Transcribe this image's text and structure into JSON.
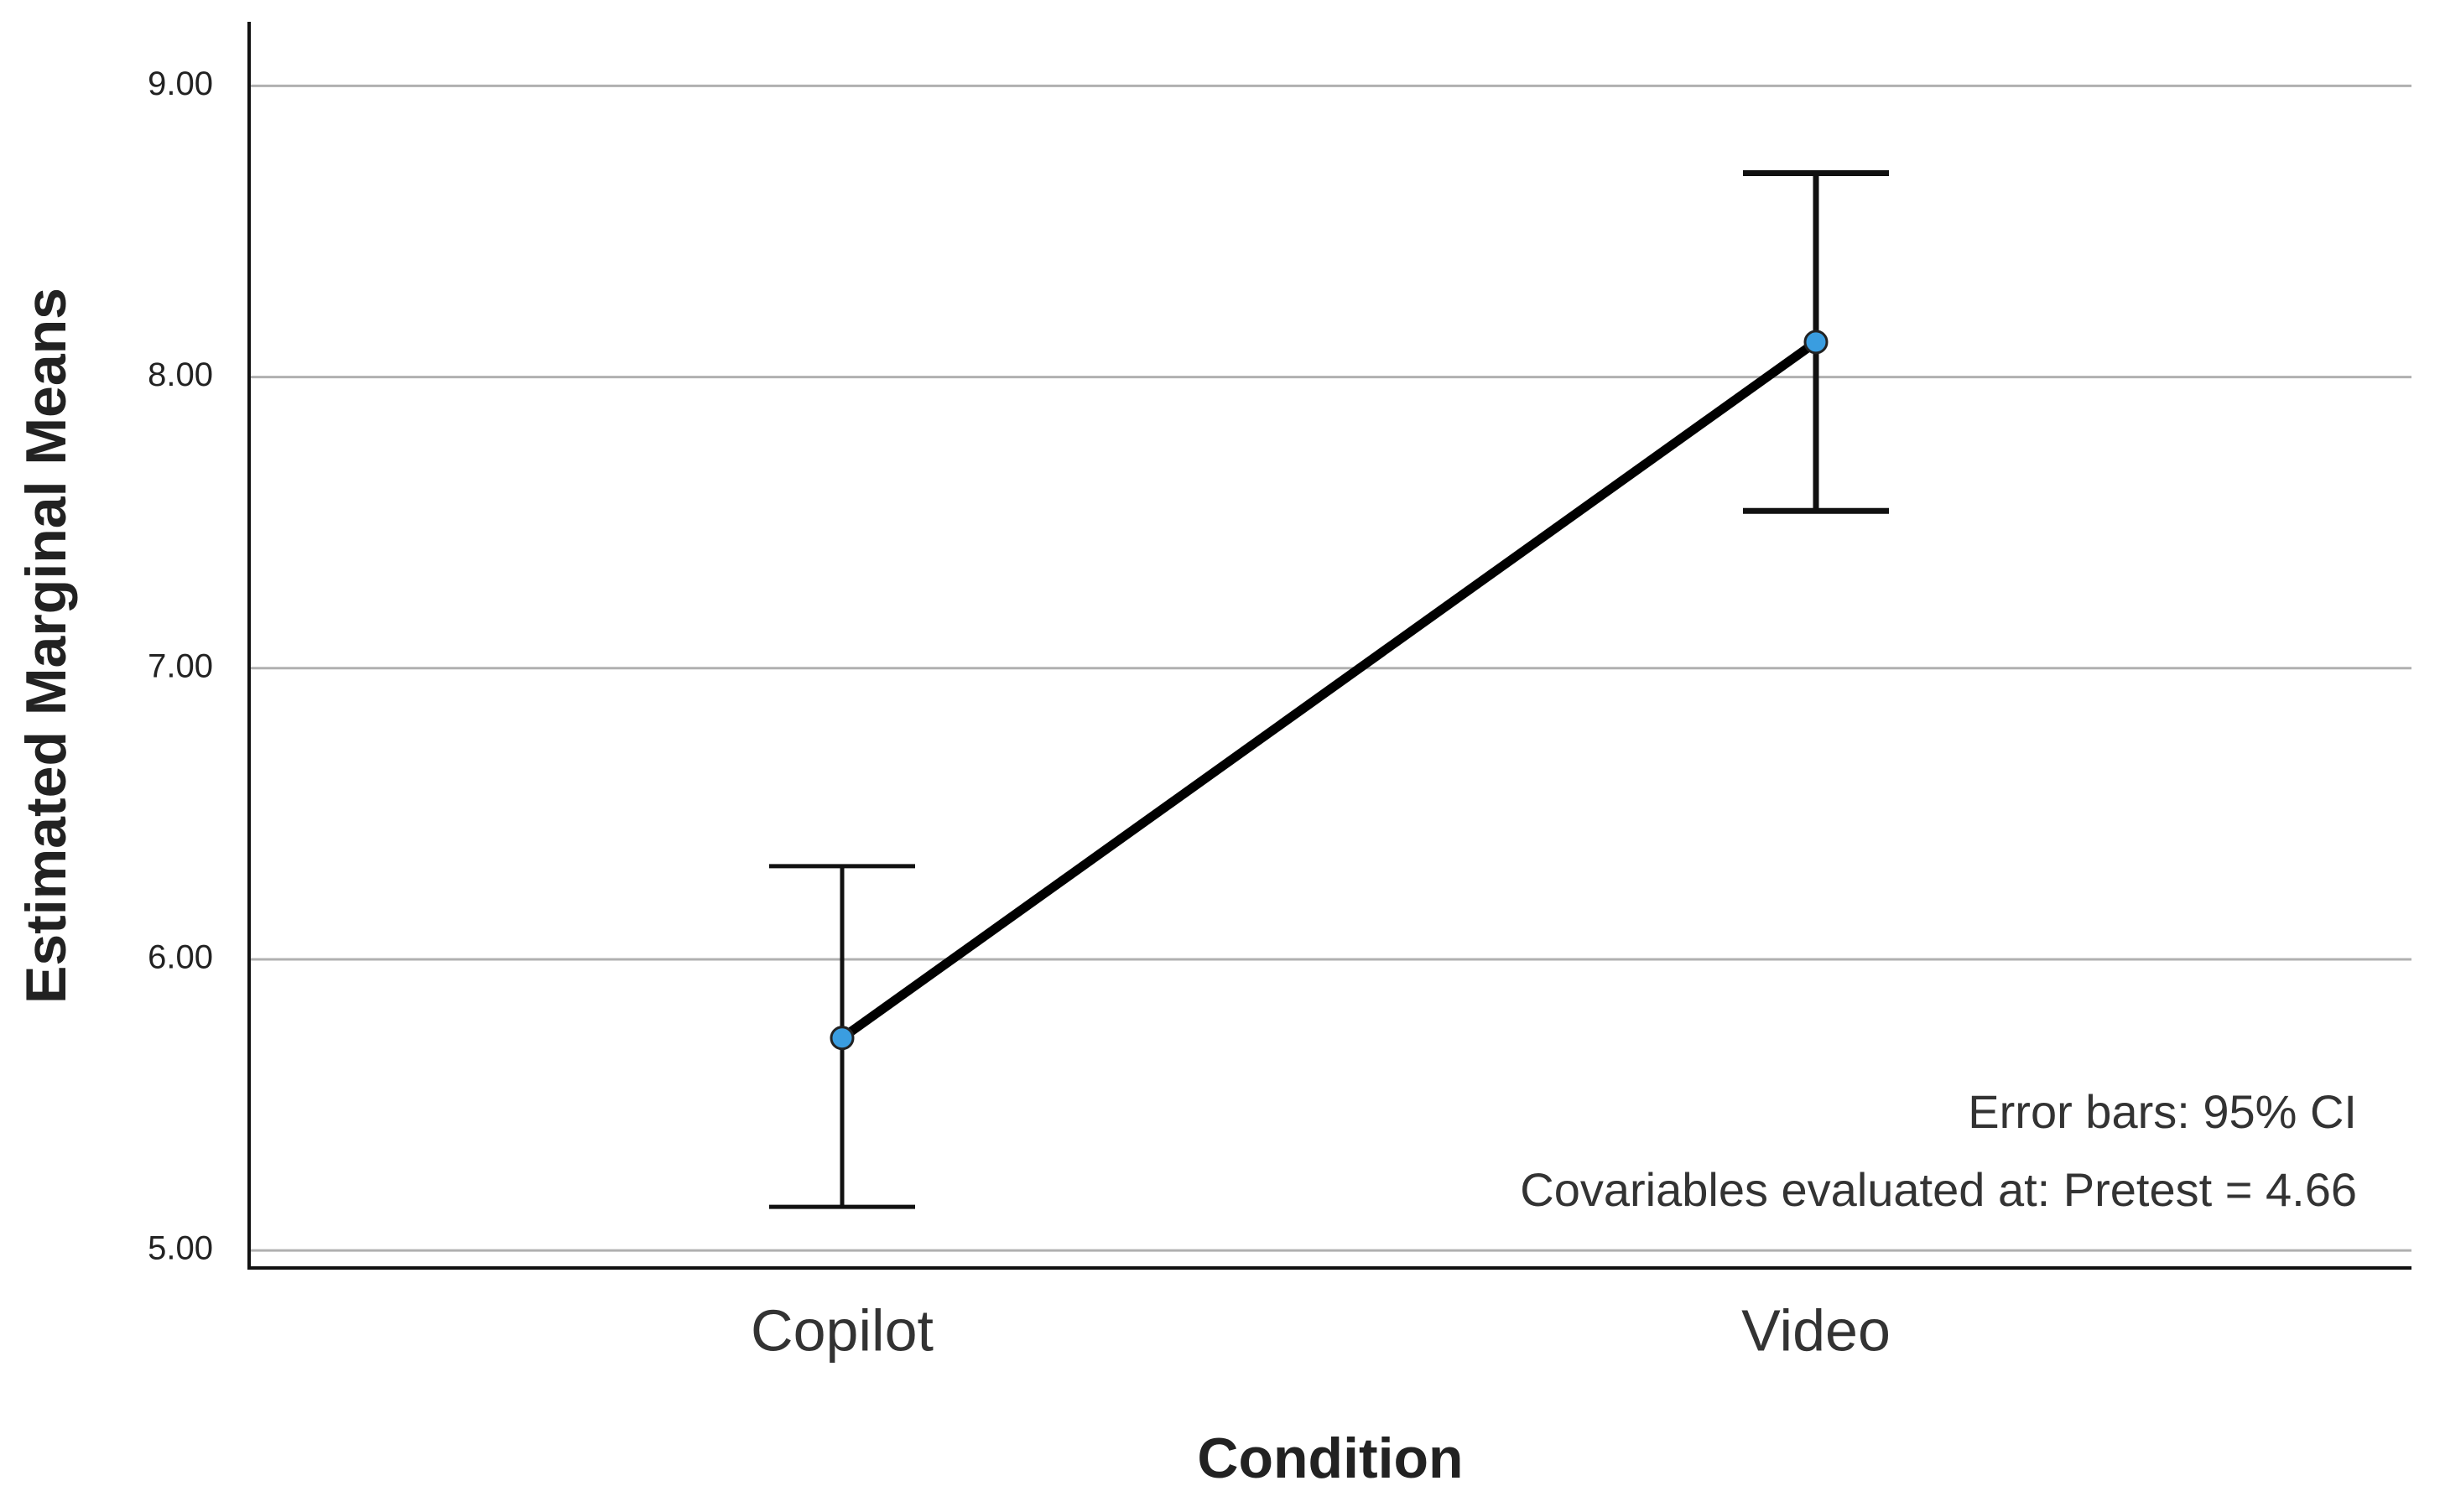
{
  "chart_data": {
    "type": "line",
    "x_label": "Condition",
    "y_label": "Estimated Marginal Means",
    "categories": [
      "Copilot",
      "Video"
    ],
    "values": [
      5.73,
      8.12
    ],
    "ci_lower": [
      5.15,
      7.54
    ],
    "ci_upper": [
      6.32,
      8.7
    ],
    "color": "#000000",
    "marker_color": "#3a9de0",
    "ylim": [
      4.94,
      9.22
    ],
    "yticks": [
      {
        "value": 5,
        "label": "5.00"
      },
      {
        "value": 6,
        "label": "6.00"
      },
      {
        "value": 7,
        "label": "7.00"
      },
      {
        "value": 8,
        "label": "8.00"
      },
      {
        "value": 9,
        "label": "9.00"
      }
    ],
    "grid": true,
    "annotations": [
      "Error bars: 95% CI",
      "Covariables evaluated at: Pretest = 4.66"
    ]
  }
}
